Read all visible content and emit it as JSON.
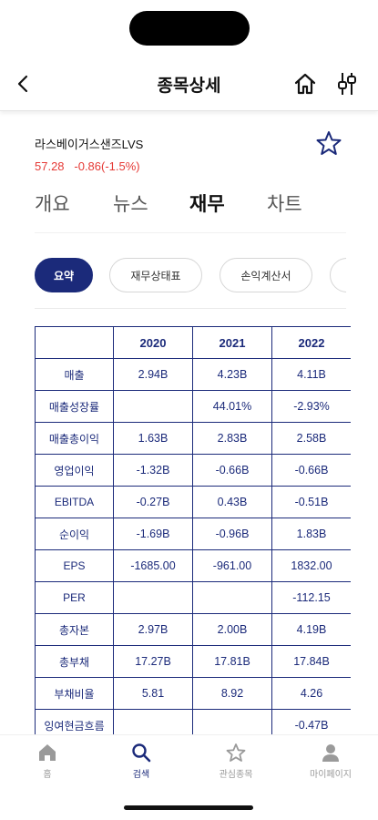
{
  "header": {
    "title": "종목상세",
    "back_icon": "chevron-left-icon",
    "home_icon": "home-icon",
    "filter_icon": "sliders-icon"
  },
  "stock": {
    "name": "라스베이거스샌즈LVS",
    "price": "57.28",
    "change": "-0.86(-1.5%)",
    "change_color": "#e53935"
  },
  "tabs": [
    {
      "label": "개요",
      "active": false
    },
    {
      "label": "뉴스",
      "active": false
    },
    {
      "label": "재무",
      "active": true
    },
    {
      "label": "차트",
      "active": false
    }
  ],
  "chips": [
    {
      "label": "요약",
      "active": true
    },
    {
      "label": "재무상태표",
      "active": false
    },
    {
      "label": "손익계산서",
      "active": false
    }
  ],
  "table": {
    "headers": [
      "",
      "2020",
      "2021",
      "2022"
    ],
    "rows": [
      [
        "매출",
        "2.94B",
        "4.23B",
        "4.11B"
      ],
      [
        "매출성장률",
        "",
        "44.01%",
        "-2.93%"
      ],
      [
        "매출총이익",
        "1.63B",
        "2.83B",
        "2.58B"
      ],
      [
        "영업이익",
        "-1.32B",
        "-0.66B",
        "-0.66B"
      ],
      [
        "EBITDA",
        "-0.27B",
        "0.43B",
        "-0.51B"
      ],
      [
        "순이익",
        "-1.69B",
        "-0.96B",
        "1.83B"
      ],
      [
        "EPS",
        "-1685.00",
        "-961.00",
        "1832.00"
      ],
      [
        "PER",
        "",
        "",
        "-112.15"
      ],
      [
        "총자본",
        "2.97B",
        "2.00B",
        "4.19B"
      ],
      [
        "총부채",
        "17.27B",
        "17.81B",
        "17.84B"
      ],
      [
        "부채비율",
        "5.81",
        "8.92",
        "4.26"
      ],
      [
        "잉여현금흐름",
        "",
        "",
        "-0.47B"
      ]
    ]
  },
  "bottom_nav": [
    {
      "label": "홈",
      "icon": "home-icon",
      "active": false
    },
    {
      "label": "검색",
      "icon": "search-icon",
      "active": true
    },
    {
      "label": "관심종목",
      "icon": "star-icon",
      "active": false
    },
    {
      "label": "마이페이지",
      "icon": "user-icon",
      "active": false
    }
  ],
  "colors": {
    "accent": "#1b2a7a",
    "down": "#e53935"
  }
}
